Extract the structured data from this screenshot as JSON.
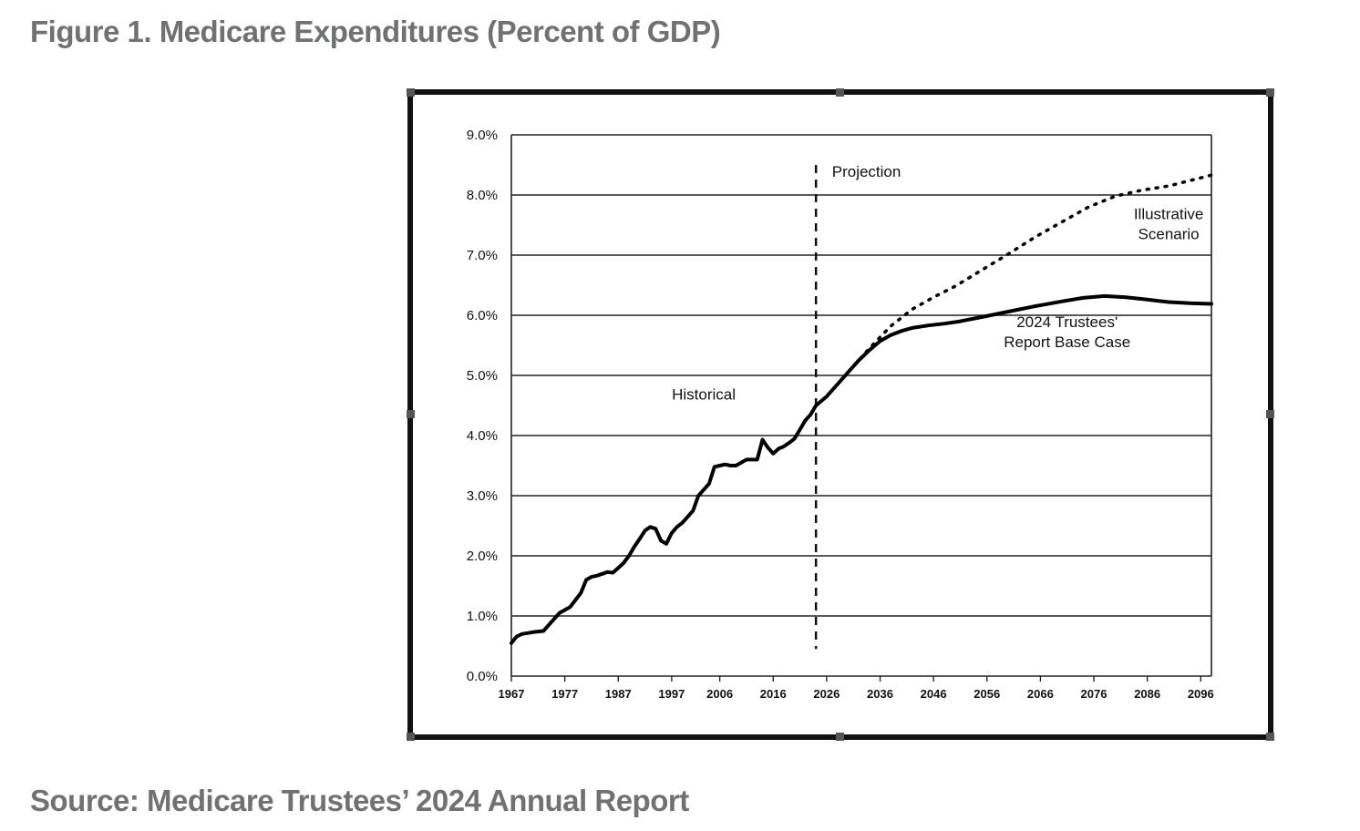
{
  "figure": {
    "title": "Figure 1. Medicare Expenditures (Percent of GDP)",
    "source": "Source: Medicare Trustees’ 2024 Annual Report"
  },
  "chart_data": {
    "type": "line",
    "title": "",
    "xlabel": "",
    "ylabel": "",
    "xlim": [
      1967,
      2098
    ],
    "ylim": [
      0,
      9
    ],
    "grid": true,
    "y_ticks": [
      0,
      1,
      2,
      3,
      4,
      5,
      6,
      7,
      8,
      9
    ],
    "y_tick_labels": [
      "0.0%",
      "1.0%",
      "2.0%",
      "3.0%",
      "4.0%",
      "5.0%",
      "6.0%",
      "7.0%",
      "8.0%",
      "9.0%"
    ],
    "x_ticks": [
      1967,
      1977,
      1987,
      1997,
      2006,
      2016,
      2026,
      2036,
      2046,
      2056,
      2066,
      2076,
      2086,
      2096
    ],
    "x_tick_labels": [
      "1967",
      "1977",
      "1987",
      "1997",
      "2006",
      "2016",
      "2026",
      "2036",
      "2046",
      "2056",
      "2066",
      "2076",
      "2086",
      "2096"
    ],
    "projection_start": 2024,
    "annotations": [
      {
        "text": "Projection",
        "x": 2027,
        "y": 8.3
      },
      {
        "text": "Historical",
        "x": 2003,
        "y": 4.6
      },
      {
        "lines": [
          "Illustrative",
          "Scenario"
        ],
        "x": 2090,
        "y": 7.6
      },
      {
        "lines": [
          "2024 Trustees'",
          "Report Base Case"
        ],
        "x": 2071,
        "y": 5.8
      }
    ],
    "series": [
      {
        "style": "solid",
        "x": [
          1967,
          1968,
          1969,
          1971,
          1973,
          1974,
          1976,
          1978,
          1980,
          1981,
          1982,
          1983,
          1984,
          1985,
          1986,
          1987,
          1988,
          1989,
          1990,
          1991,
          1992,
          1993,
          1994,
          1995,
          1996,
          1997,
          1998,
          1999,
          2000,
          2001,
          2002,
          2003,
          2004,
          2005,
          2006,
          2007,
          2008,
          2009,
          2010,
          2011,
          2012,
          2013,
          2014,
          2015,
          2016,
          2017,
          2018,
          2019,
          2020,
          2021,
          2022,
          2023,
          2024
        ],
        "values": [
          0.55,
          0.66,
          0.7,
          0.73,
          0.75,
          0.85,
          1.05,
          1.15,
          1.38,
          1.6,
          1.65,
          1.67,
          1.7,
          1.73,
          1.72,
          1.8,
          1.88,
          2.0,
          2.15,
          2.28,
          2.42,
          2.48,
          2.45,
          2.25,
          2.2,
          2.38,
          2.48,
          2.55,
          2.65,
          2.75,
          3.0,
          3.1,
          3.2,
          3.48,
          3.5,
          3.52,
          3.5,
          3.5,
          3.55,
          3.6,
          3.6,
          3.6,
          3.93,
          3.8,
          3.7,
          3.78,
          3.82,
          3.88,
          3.95,
          4.1,
          4.25,
          4.35,
          4.5
        ]
      },
      {
        "name": "2024 Trustees' Report Base Case",
        "style": "solid",
        "x": [
          2024,
          2026,
          2028,
          2030,
          2032,
          2034,
          2036,
          2038,
          2040,
          2042,
          2045,
          2048,
          2051,
          2055,
          2060,
          2065,
          2070,
          2074,
          2078,
          2082,
          2086,
          2090,
          2094,
          2098
        ],
        "values": [
          4.5,
          4.65,
          4.85,
          5.05,
          5.25,
          5.42,
          5.57,
          5.67,
          5.74,
          5.79,
          5.83,
          5.86,
          5.9,
          5.97,
          6.06,
          6.15,
          6.23,
          6.29,
          6.32,
          6.3,
          6.26,
          6.22,
          6.2,
          6.19
        ]
      },
      {
        "name": "Illustrative Scenario",
        "style": "dotted",
        "x": [
          2030,
          2034,
          2038,
          2042,
          2046,
          2050,
          2055,
          2060,
          2065,
          2070,
          2075,
          2080,
          2085,
          2090,
          2098
        ],
        "values": [
          5.05,
          5.45,
          5.82,
          6.1,
          6.3,
          6.48,
          6.75,
          7.02,
          7.3,
          7.55,
          7.8,
          7.98,
          8.08,
          8.15,
          8.33
        ]
      }
    ]
  }
}
